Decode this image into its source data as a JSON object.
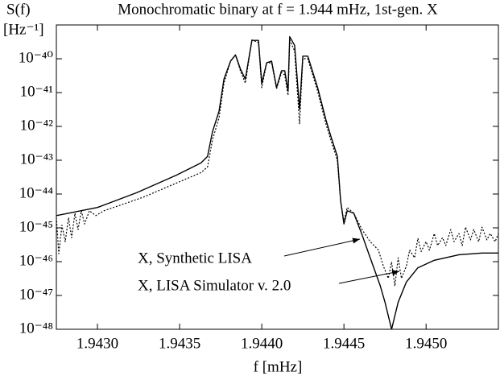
{
  "chart_data": {
    "type": "line",
    "title": "Monochromatic binary at f = 1.944 mHz, 1st-gen. X",
    "y_label": "S(f)",
    "y_unit": "[Hz⁻¹]",
    "x_label": "f [mHz]",
    "xlim": [
      1.94275,
      1.94544
    ],
    "ylim": [
      1e-48,
      1e-39
    ],
    "log_y": true,
    "xticks": [
      {
        "value": 1.943,
        "label": "1.9430"
      },
      {
        "value": 1.9435,
        "label": "1.9435"
      },
      {
        "value": 1.944,
        "label": "1.9440"
      },
      {
        "value": 1.9445,
        "label": "1.9445"
      },
      {
        "value": 1.945,
        "label": "1.9450"
      }
    ],
    "yticks": [
      {
        "value": 1e-48,
        "label": "10⁻⁴⁸"
      },
      {
        "value": 1e-47,
        "label": "10⁻⁴⁷"
      },
      {
        "value": 1e-46,
        "label": "10⁻⁴⁶"
      },
      {
        "value": 1e-45,
        "label": "10⁻⁴⁵"
      },
      {
        "value": 1e-44,
        "label": "10⁻⁴⁴"
      },
      {
        "value": 1e-43,
        "label": "10⁻⁴³"
      },
      {
        "value": 1e-42,
        "label": "10⁻⁴²"
      },
      {
        "value": 1e-41,
        "label": "10⁻⁴¹"
      },
      {
        "value": 1e-40,
        "label": "10⁻⁴⁰"
      }
    ],
    "series": [
      {
        "name": "X, Synthetic LISA",
        "color": "#000000",
        "style": "solid",
        "x": [
          1.94275,
          1.943,
          1.94324,
          1.94348,
          1.94363,
          1.94367,
          1.9437,
          1.94374,
          1.94377,
          1.94381,
          1.94384,
          1.94387,
          1.9439,
          1.94394,
          1.94398,
          1.944,
          1.94403,
          1.94406,
          1.94409,
          1.94412,
          1.94414,
          1.94416,
          1.94417,
          1.9442,
          1.94423,
          1.94425,
          1.94428,
          1.94434,
          1.94439,
          1.94442,
          1.94446,
          1.94448,
          1.9445,
          1.94452,
          1.94456,
          1.94461,
          1.94466,
          1.94472,
          1.94475,
          1.94479,
          1.94483,
          1.94488,
          1.94495,
          1.94505,
          1.9452,
          1.94534,
          1.94544
        ],
        "values": [
          2.3e-45,
          4e-45,
          1.1e-44,
          3.6e-44,
          8.3e-44,
          1.3e-43,
          6.9e-43,
          2.8e-42,
          2.5e-41,
          8.5e-41,
          1.3e-40,
          5e-41,
          2.5e-41,
          3.5e-40,
          3.5e-40,
          1.9e-41,
          7.6e-41,
          8.5e-41,
          1.4e-41,
          4.4e-41,
          4.4e-41,
          1.1e-41,
          4.5e-40,
          2.5e-40,
          3.2e-42,
          1.2e-40,
          1.2e-40,
          1.4e-41,
          1.6e-42,
          5.2e-43,
          1.3e-43,
          6.3e-45,
          1.3e-45,
          3.2e-45,
          2.7e-45,
          6.3e-46,
          1.3e-46,
          2e-47,
          6.3e-48,
          1e-48,
          6.3e-48,
          2.5e-47,
          6.6e-47,
          1.1e-46,
          1.6e-46,
          1.8e-46,
          1.8e-46
        ]
      },
      {
        "name": "X, LISA Simulator v. 2.0",
        "color": "#000000",
        "style": "dotted",
        "x": [
          1.94275,
          1.942765,
          1.942784,
          1.942804,
          1.942824,
          1.942843,
          1.942863,
          1.942882,
          1.942902,
          1.942922,
          1.942951,
          1.94299,
          1.94304,
          1.94314,
          1.94328,
          1.94348,
          1.94363,
          1.94367,
          1.9437,
          1.94374,
          1.94377,
          1.94381,
          1.94384,
          1.94387,
          1.9439,
          1.94394,
          1.94398,
          1.944,
          1.94403,
          1.94406,
          1.94409,
          1.94412,
          1.94414,
          1.94416,
          1.94417,
          1.9442,
          1.94423,
          1.94425,
          1.94428,
          1.94434,
          1.94439,
          1.94442,
          1.94446,
          1.94448,
          1.9445,
          1.94452,
          1.94456,
          1.94461,
          1.94466,
          1.94471,
          1.94474,
          1.94477,
          1.94479,
          1.94481,
          1.94483,
          1.94485,
          1.94488,
          1.9449,
          1.94493,
          1.94495,
          1.94497,
          1.945,
          1.94502,
          1.94505,
          1.94507,
          1.9451,
          1.94512,
          1.94515,
          1.94517,
          1.9452,
          1.94522,
          1.94524,
          1.94527,
          1.94529,
          1.94532,
          1.94534,
          1.94537,
          1.94539,
          1.94542,
          1.94544
        ],
        "values": [
          2e-45,
          1.7e-46,
          1.2e-45,
          3.9e-46,
          2e-45,
          5.1e-46,
          2.7e-45,
          8.9e-46,
          3.2e-45,
          1.3e-45,
          3.2e-45,
          2.3e-45,
          3.2e-45,
          4.7e-45,
          8.1e-45,
          2.1e-44,
          4.3e-44,
          6.3e-44,
          4e-43,
          1.8e-42,
          1.9e-41,
          8.5e-41,
          1.3e-40,
          4.4e-41,
          1.9e-41,
          3.6e-40,
          3e-40,
          1.4e-41,
          7.6e-41,
          7.6e-41,
          1.3e-41,
          3.9e-41,
          3.3e-41,
          8.3e-42,
          3.6e-40,
          1.7e-40,
          1.2e-42,
          1e-40,
          1e-40,
          1.1e-41,
          1.2e-42,
          4e-43,
          1e-43,
          6.2e-45,
          1.5e-45,
          4e-45,
          2.7e-45,
          8.9e-46,
          3.9e-46,
          2.2e-46,
          7.4e-47,
          3.2e-47,
          9.8e-47,
          1.9e-47,
          1.3e-46,
          3.2e-47,
          7.4e-47,
          2.2e-46,
          1.3e-46,
          4.9e-46,
          2e-46,
          3.9e-46,
          2.2e-46,
          6.8e-46,
          3e-46,
          5.1e-46,
          3e-46,
          8.9e-46,
          3.9e-46,
          6.8e-46,
          3e-46,
          1.05e-45,
          4.4e-46,
          8.9e-46,
          3.9e-46,
          1.05e-45,
          4.4e-46,
          6.8e-46,
          3.9e-46,
          6.8e-46
        ]
      }
    ]
  }
}
